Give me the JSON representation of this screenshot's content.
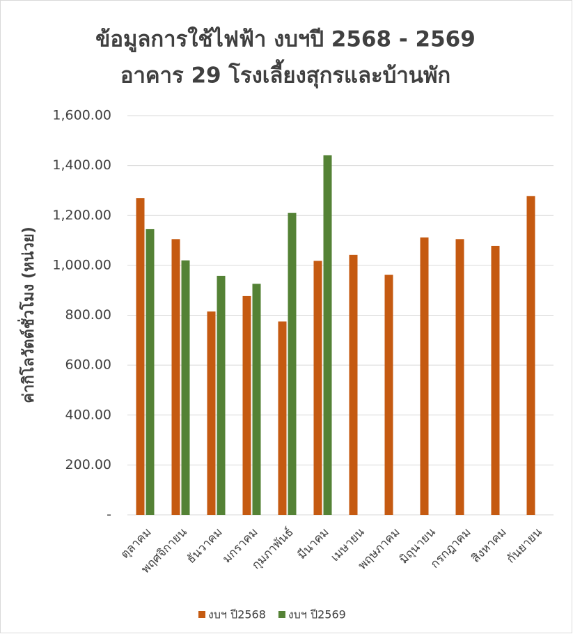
{
  "chart_data": {
    "type": "bar",
    "title": [
      "ข้อมูลการใช้ไฟฟ้า งบฯปี 2568 - 2569",
      "อาคาร 29 โรงเลี้ยงสุกรและบ้านพัก"
    ],
    "y_label": "ค่ากิโลวัตต์ชั่วโมง (หน่วย)",
    "categories": [
      "ตุลาคม",
      "พฤศจิกายน",
      "ธันวาคม",
      "มกราคม",
      "กุมภาพันธ์",
      "มีนาคม",
      "เมษายน",
      "พฤษภาคม",
      "มิถุนายน",
      "กรกฎาคม",
      "สิงหาคม",
      "กันยายน"
    ],
    "series": [
      {
        "name": "งบฯ ปี2568",
        "color": "#c55a11",
        "values": [
          1270,
          1105,
          815,
          877,
          775,
          1018,
          1042,
          962,
          1112,
          1105,
          1078,
          1278
        ]
      },
      {
        "name": "งบฯ ปี2569",
        "color": "#548235",
        "values": [
          1145,
          1020,
          958,
          926,
          1210,
          1441,
          null,
          null,
          null,
          null,
          null,
          null
        ]
      }
    ],
    "ylim": [
      0,
      1600
    ],
    "yticks": [
      {
        "value": 0,
        "label": "-"
      },
      {
        "value": 200,
        "label": "200.00"
      },
      {
        "value": 400,
        "label": "400.00"
      },
      {
        "value": 600,
        "label": "600.00"
      },
      {
        "value": 800,
        "label": "800.00"
      },
      {
        "value": 1000,
        "label": "1,000.00"
      },
      {
        "value": 1200,
        "label": "1,200.00"
      },
      {
        "value": 1400,
        "label": "1,400.00"
      },
      {
        "value": 1600,
        "label": "1,600.00"
      }
    ],
    "grid": true,
    "legend": "bottom"
  }
}
